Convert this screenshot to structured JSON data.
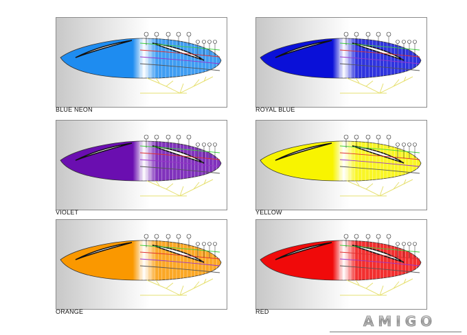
{
  "variants": [
    {
      "label": "BLUE NEON",
      "color": "#1e8cf0"
    },
    {
      "label": "ROYAL BLUE",
      "color": "#0a10d8"
    },
    {
      "label": "VIOLET",
      "color": "#6a0eb0"
    },
    {
      "label": "YELLOW",
      "color": "#f8f400"
    },
    {
      "label": "ORANGE",
      "color": "#fa9800"
    },
    {
      "label": "RED",
      "color": "#f00a0a"
    }
  ],
  "logo": {
    "text": "AMIGO"
  }
}
